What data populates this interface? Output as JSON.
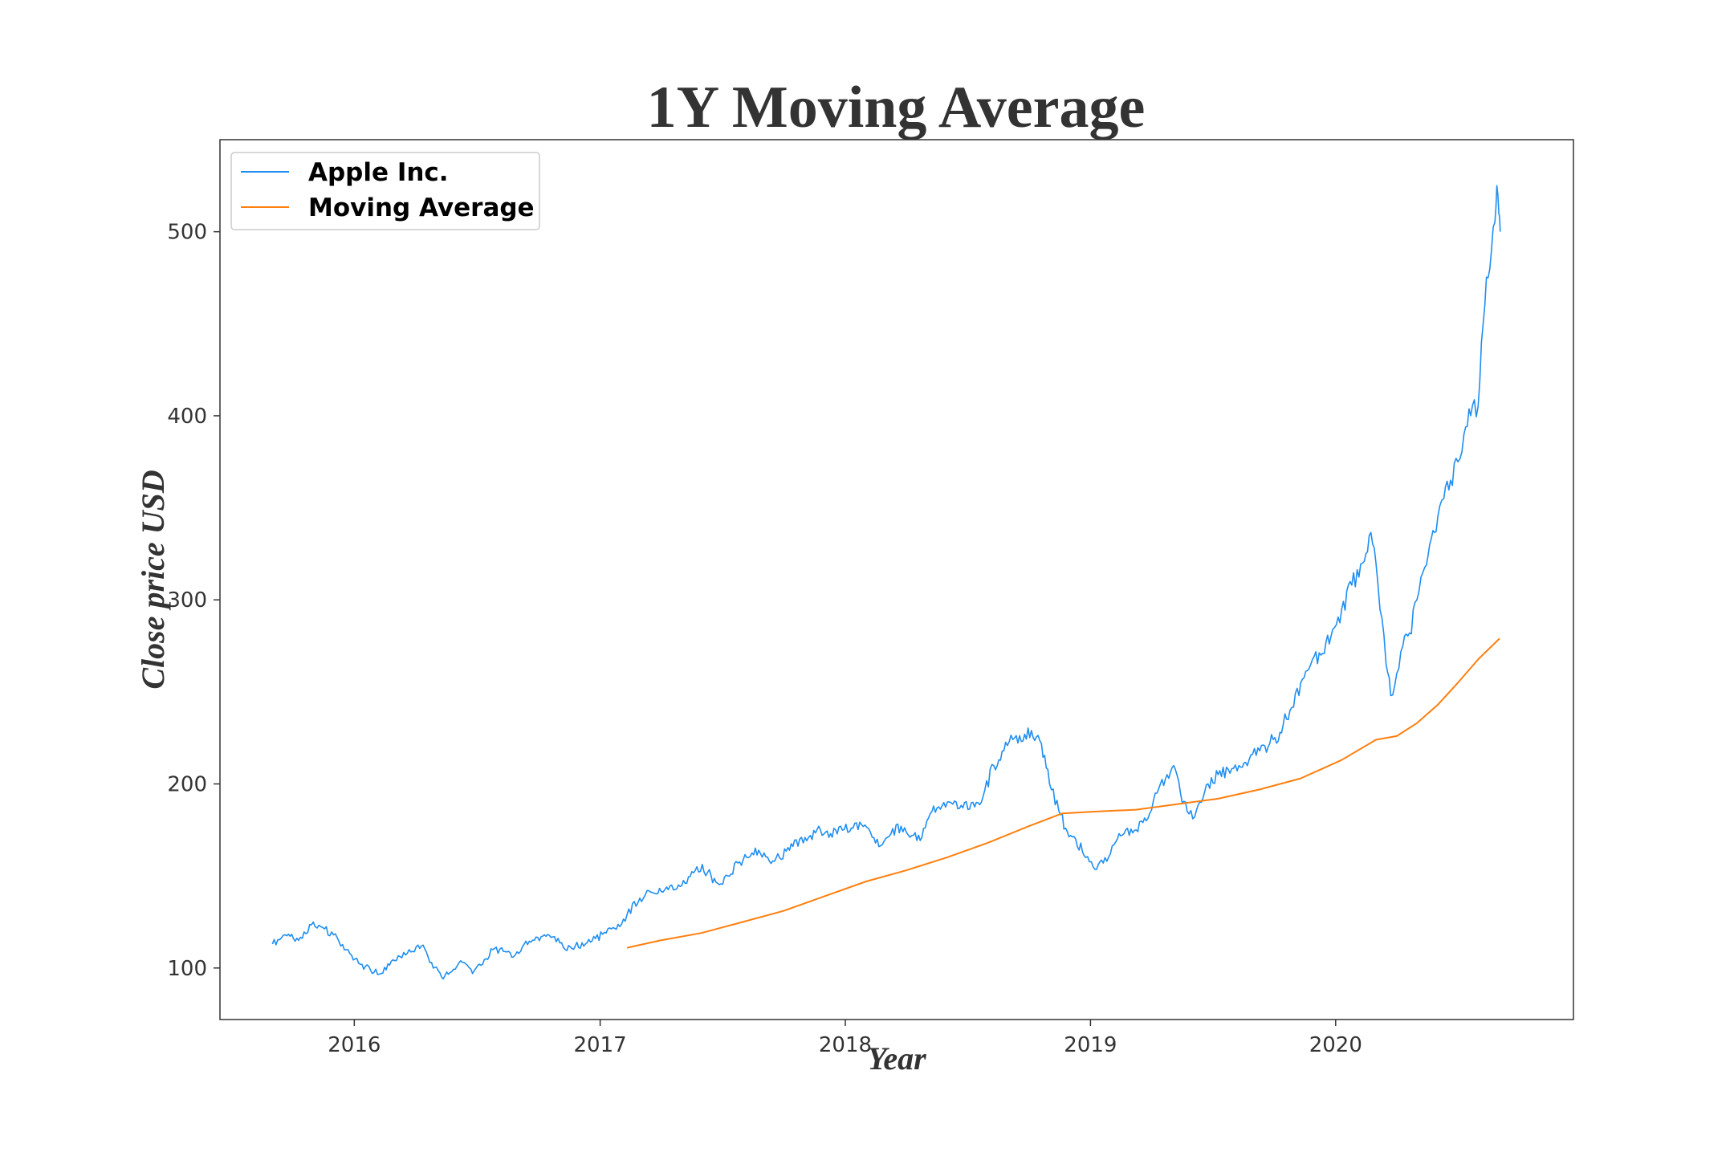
{
  "colors": {
    "apple": "#1f8ef1",
    "moving_average": "#ff7f0e",
    "text": "#333333",
    "axes": "#333333"
  },
  "chart_data": {
    "type": "line",
    "title": "1Y Moving Average",
    "xlabel": "Year",
    "ylabel": "Close price USD",
    "xlim": [
      "2015-06-15",
      "2020-12-20"
    ],
    "ylim": [
      72,
      550
    ],
    "x_ticks": [
      {
        "date": "2016-01-01",
        "label": "2016"
      },
      {
        "date": "2017-01-01",
        "label": "2017"
      },
      {
        "date": "2018-01-01",
        "label": "2018"
      },
      {
        "date": "2019-01-01",
        "label": "2019"
      },
      {
        "date": "2020-01-01",
        "label": "2020"
      }
    ],
    "y_ticks": [
      100,
      200,
      300,
      400,
      500
    ],
    "grid": false,
    "legend_position": "top-left",
    "series": [
      {
        "name": "Apple Inc.",
        "color_key": "apple",
        "x": [
          "2015-09-01",
          "2015-09-20",
          "2015-10-10",
          "2015-11-01",
          "2015-11-15",
          "2015-12-01",
          "2015-12-20",
          "2016-01-10",
          "2016-01-25",
          "2016-02-10",
          "2016-03-01",
          "2016-03-20",
          "2016-04-10",
          "2016-04-25",
          "2016-05-10",
          "2016-05-25",
          "2016-06-10",
          "2016-06-25",
          "2016-07-10",
          "2016-07-25",
          "2016-08-10",
          "2016-08-25",
          "2016-09-10",
          "2016-09-25",
          "2016-10-10",
          "2016-10-25",
          "2016-11-10",
          "2016-11-25",
          "2016-12-10",
          "2016-12-25",
          "2017-01-10",
          "2017-01-25",
          "2017-02-10",
          "2017-03-01",
          "2017-03-20",
          "2017-04-10",
          "2017-04-25",
          "2017-05-10",
          "2017-05-25",
          "2017-06-10",
          "2017-06-25",
          "2017-07-10",
          "2017-07-25",
          "2017-08-10",
          "2017-08-25",
          "2017-09-10",
          "2017-09-25",
          "2017-10-10",
          "2017-10-25",
          "2017-11-10",
          "2017-11-25",
          "2017-12-10",
          "2017-12-25",
          "2018-01-10",
          "2018-01-25",
          "2018-02-10",
          "2018-02-25",
          "2018-03-10",
          "2018-03-25",
          "2018-04-10",
          "2018-04-25",
          "2018-05-10",
          "2018-05-25",
          "2018-06-10",
          "2018-06-25",
          "2018-07-10",
          "2018-07-25",
          "2018-08-10",
          "2018-08-25",
          "2018-09-10",
          "2018-09-25",
          "2018-10-05",
          "2018-10-20",
          "2018-11-01",
          "2018-11-15",
          "2018-11-25",
          "2018-12-10",
          "2018-12-25",
          "2019-01-05",
          "2019-01-20",
          "2019-02-05",
          "2019-02-20",
          "2019-03-10",
          "2019-03-25",
          "2019-04-10",
          "2019-04-25",
          "2019-05-05",
          "2019-05-15",
          "2019-05-25",
          "2019-06-05",
          "2019-06-15",
          "2019-06-25",
          "2019-07-10",
          "2019-07-25",
          "2019-08-10",
          "2019-08-25",
          "2019-09-10",
          "2019-09-25",
          "2019-10-10",
          "2019-10-25",
          "2019-11-10",
          "2019-11-25",
          "2019-12-10",
          "2019-12-25",
          "2020-01-10",
          "2020-01-25",
          "2020-02-10",
          "2020-02-20",
          "2020-03-01",
          "2020-03-10",
          "2020-03-16",
          "2020-03-23",
          "2020-04-01",
          "2020-04-10",
          "2020-04-20",
          "2020-05-01",
          "2020-05-10",
          "2020-05-20",
          "2020-06-01",
          "2020-06-10",
          "2020-06-20",
          "2020-07-01",
          "2020-07-10",
          "2020-07-20",
          "2020-07-31",
          "2020-08-05",
          "2020-08-10",
          "2020-08-15",
          "2020-08-20",
          "2020-08-25",
          "2020-08-28",
          "2020-08-31",
          "2020-09-02"
        ],
        "y": [
          113,
          118,
          115,
          125,
          122,
          118,
          110,
          102,
          99,
          97,
          104,
          108,
          112,
          103,
          95,
          98,
          103,
          97,
          102,
          110,
          109,
          106,
          113,
          115,
          118,
          117,
          110,
          112,
          113,
          116,
          119,
          121,
          129,
          138,
          141,
          144,
          143,
          146,
          155,
          152,
          146,
          150,
          157,
          160,
          164,
          158,
          160,
          164,
          170,
          172,
          175,
          173,
          177,
          176,
          178,
          171,
          167,
          173,
          177,
          172,
          171,
          185,
          188,
          189,
          187,
          190,
          193,
          210,
          218,
          225,
          227,
          229,
          222,
          200,
          185,
          176,
          170,
          160,
          155,
          157,
          167,
          173,
          175,
          180,
          195,
          205,
          210,
          195,
          185,
          182,
          190,
          200,
          205,
          208,
          210,
          213,
          218,
          222,
          228,
          240,
          255,
          265,
          270,
          280,
          295,
          308,
          320,
          335,
          320,
          290,
          265,
          248,
          260,
          275,
          282,
          300,
          315,
          330,
          345,
          355,
          365,
          375,
          390,
          400,
          405,
          440,
          460,
          475,
          490,
          505,
          525,
          510,
          500
        ],
        "values_note_hidden": false
      },
      {
        "name": "Moving Average",
        "color_key": "moving_average",
        "x": [
          "2017-02-10",
          "2017-04-01",
          "2017-06-01",
          "2017-08-01",
          "2017-10-01",
          "2017-12-01",
          "2018-02-01",
          "2018-04-01",
          "2018-06-01",
          "2018-08-01",
          "2018-10-01",
          "2018-11-20",
          "2019-01-10",
          "2019-03-10",
          "2019-05-10",
          "2019-07-10",
          "2019-09-10",
          "2019-11-10",
          "2020-01-10",
          "2020-03-01",
          "2020-04-01",
          "2020-05-01",
          "2020-06-01",
          "2020-07-01",
          "2020-08-01",
          "2020-09-01"
        ],
        "y": [
          111,
          115,
          119,
          125,
          131,
          139,
          147,
          153,
          160,
          168,
          177,
          184,
          185,
          186,
          189,
          192,
          197,
          203,
          213,
          224,
          226,
          233,
          243,
          255,
          268,
          279
        ]
      }
    ]
  }
}
